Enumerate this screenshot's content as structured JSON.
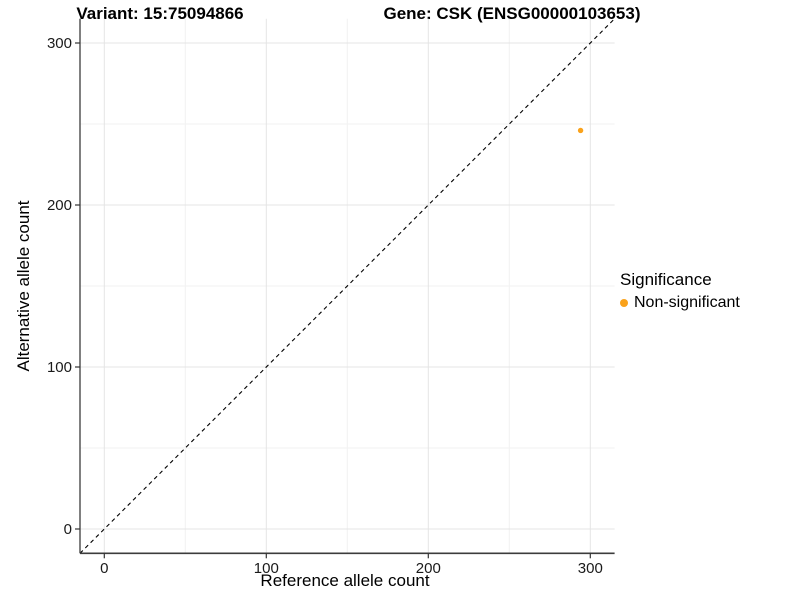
{
  "header": {
    "variant_title": "Variant: 15:75094866",
    "gene_title": "Gene: CSK (ENSG00000103653)"
  },
  "chart_data": {
    "type": "scatter",
    "title_left": "Variant: 15:75094866",
    "title_right": "Gene: CSK (ENSG00000103653)",
    "xlabel": "Reference allele count",
    "ylabel": "Alternative allele count",
    "xlim": [
      -15,
      315
    ],
    "ylim": [
      -15,
      315
    ],
    "x_ticks": [
      0,
      100,
      200,
      300
    ],
    "y_ticks": [
      0,
      100,
      200,
      300
    ],
    "x_minor_ticks": [
      50,
      150,
      250
    ],
    "y_minor_ticks": [
      50,
      150,
      250
    ],
    "grid": "major+minor",
    "reference_line": {
      "kind": "identity y=x",
      "style": "dashed",
      "color": "#000000"
    },
    "series": [
      {
        "name": "Non-significant",
        "color": "#FAA21B",
        "points": [
          {
            "x": 294,
            "y": 246
          }
        ]
      }
    ],
    "legend": {
      "title": "Significance",
      "position": "right",
      "items": [
        {
          "label": "Non-significant",
          "color": "#FAA21B"
        }
      ]
    }
  },
  "colors": {
    "background": "#FFFFFF",
    "grid_major": "#E4E4E4",
    "grid_minor": "#F2F2F2",
    "axis_line": "#3C3C3C",
    "tick_mark": "#333333",
    "tick_text": "#1A1A1A",
    "point": "#FAA21B"
  }
}
